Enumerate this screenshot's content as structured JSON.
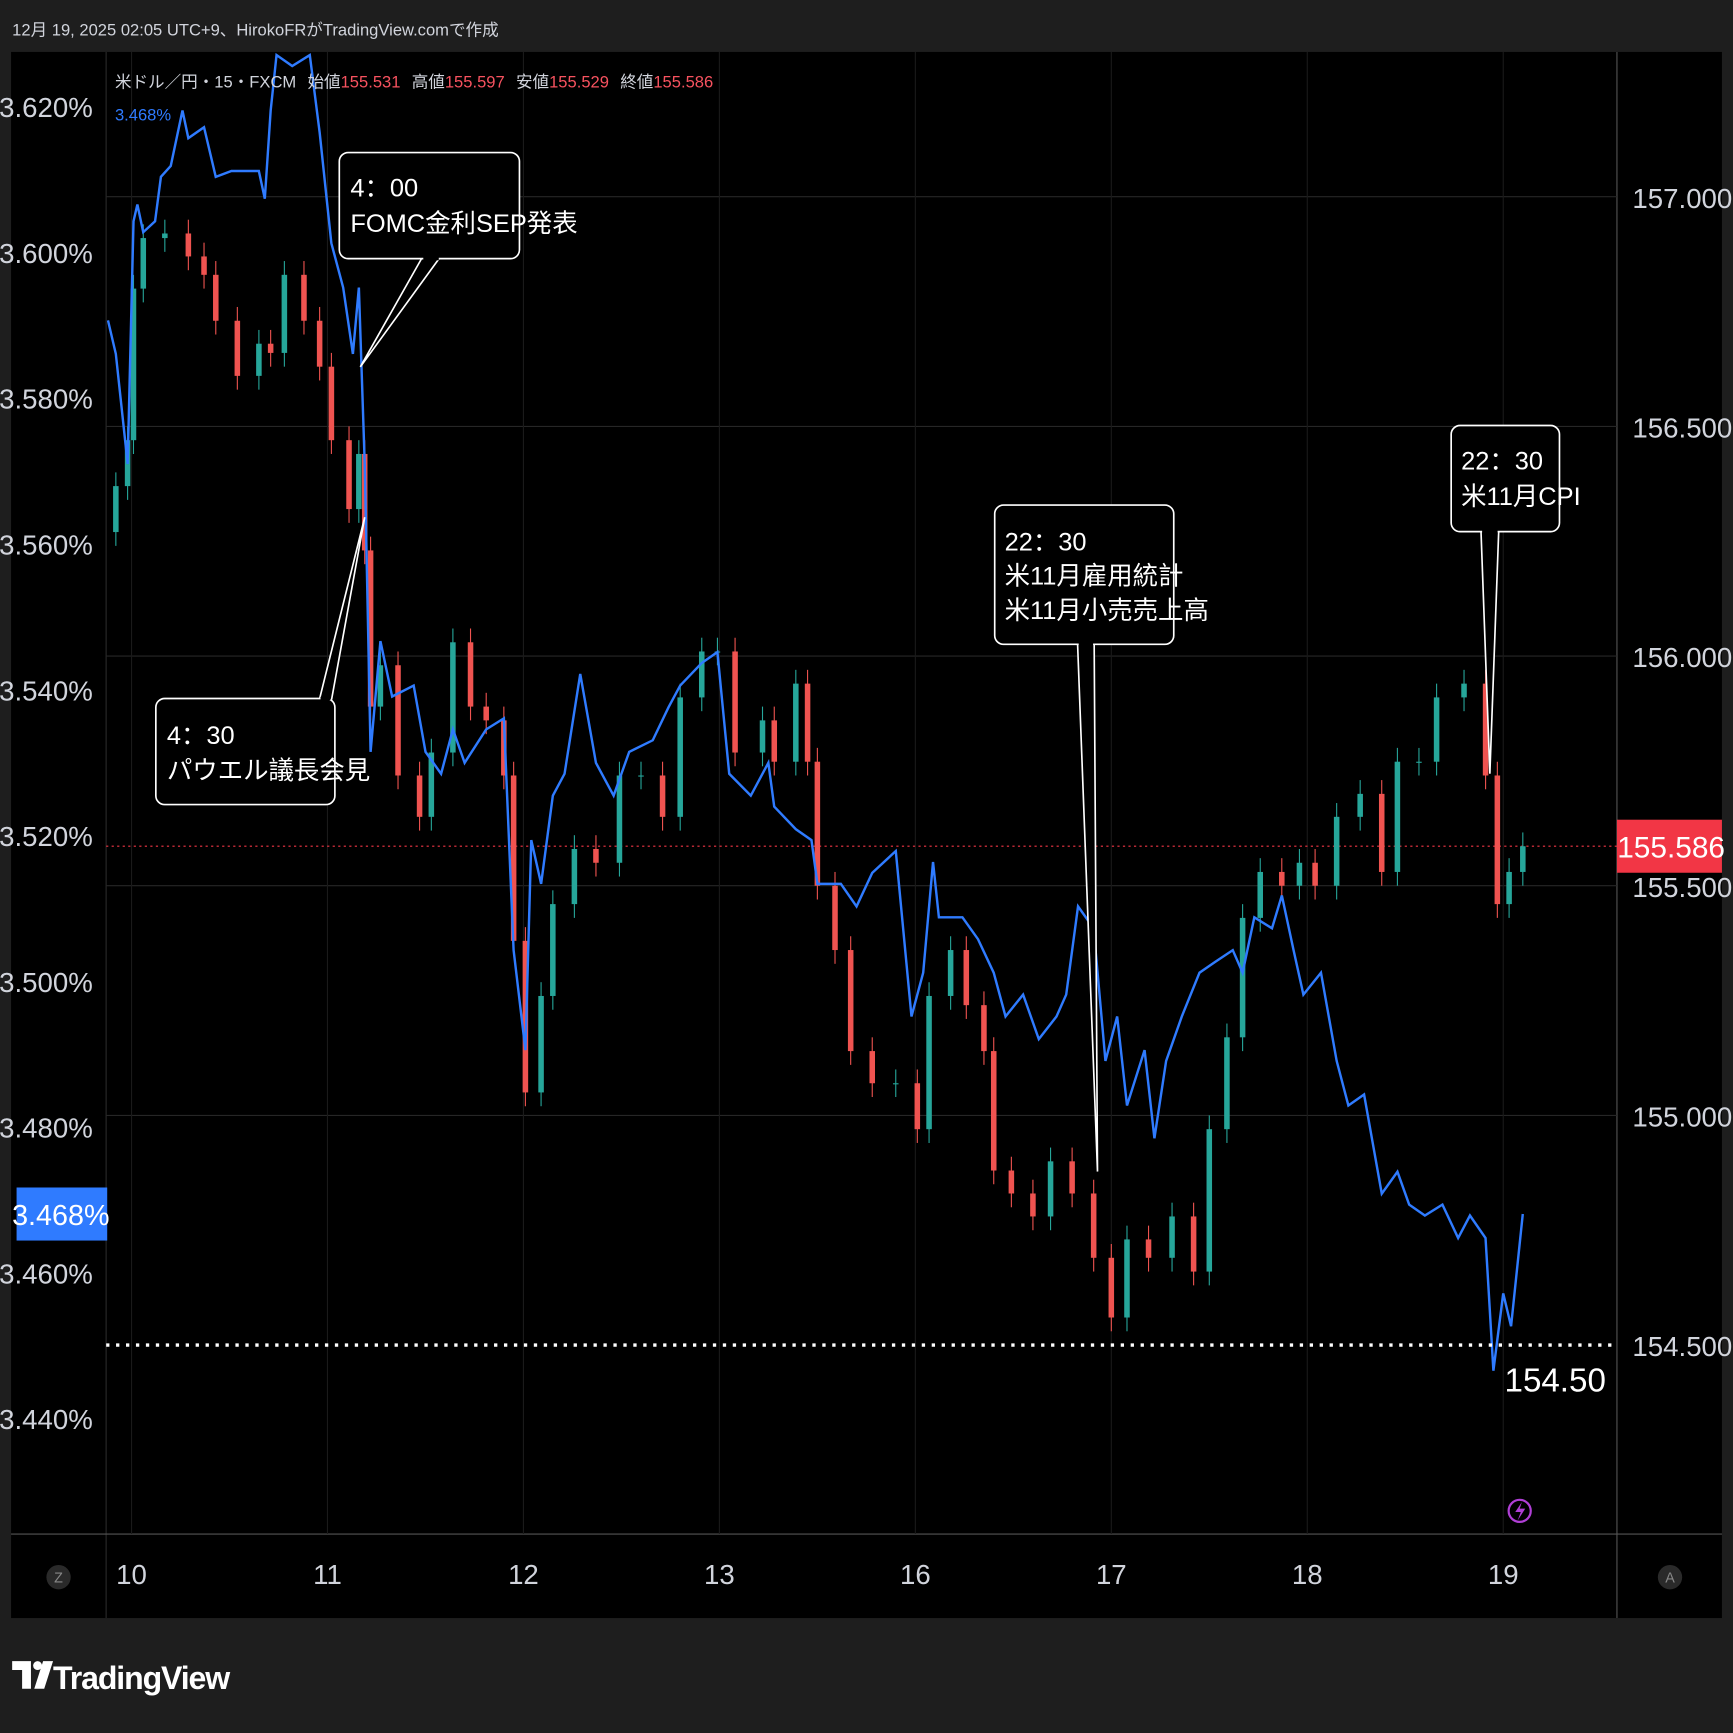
{
  "header": {
    "caption": "12月 19, 2025 02:05 UTC+9、HirokoFRがTradingView.comで作成"
  },
  "legend": {
    "symbol": "米ドル／円・15・FXCM",
    "open_label": "始値",
    "open": "155.531",
    "high_label": "高値",
    "high": "155.597",
    "low_label": "安値",
    "low": "155.529",
    "close_label": "終値",
    "close": "155.586",
    "yield_value": "3.468%"
  },
  "colors": {
    "background": "#000000",
    "frame": "#1e1e1e",
    "up": "#26a69a",
    "down": "#ef5350",
    "yield_line": "#2f7bff",
    "last_price": "#f23645",
    "yield_badge": "#2f7bff",
    "alert_icon": "#b03fd6"
  },
  "annotations": [
    {
      "lines": [
        "4：00",
        "FOMC金利SEP発表"
      ]
    },
    {
      "lines": [
        "4：30",
        "パウエル議長会見"
      ]
    },
    {
      "lines": [
        "22：30",
        "米11月雇用統計",
        "米11月小売売上高"
      ]
    },
    {
      "lines": [
        "22：30",
        "米11月CPI"
      ]
    }
  ],
  "level_line": {
    "value": 154.5,
    "label": "154.50"
  },
  "badges": {
    "last_price": "155.586",
    "yield": "3.468%"
  },
  "axis_buttons": {
    "left": "Z",
    "right": "A"
  },
  "icons": {
    "alert": "lightning-icon"
  },
  "logo": {
    "text": "TradingView"
  },
  "chart_data": [
    {
      "type": "candlestick",
      "name": "米ドル／円・15・FXCM",
      "axis": "right",
      "ylim": [
        154.18,
        157.31
      ],
      "yticks": [
        "157.000",
        "156.500",
        "156.000",
        "155.500",
        "155.000",
        "154.500"
      ],
      "x_ticks": [
        "10",
        "11",
        "12",
        "13",
        "16",
        "17",
        "18",
        "19"
      ],
      "grid": true,
      "close_series": [
        [
          9.88,
          156.27
        ],
        [
          9.92,
          156.37
        ],
        [
          9.98,
          156.47
        ],
        [
          10.01,
          156.8
        ],
        [
          10.06,
          156.91
        ],
        [
          10.17,
          156.92
        ],
        [
          10.29,
          156.87
        ],
        [
          10.37,
          156.83
        ],
        [
          10.43,
          156.73
        ],
        [
          10.54,
          156.61
        ],
        [
          10.65,
          156.68
        ],
        [
          10.71,
          156.66
        ],
        [
          10.78,
          156.83
        ],
        [
          10.88,
          156.73
        ],
        [
          10.96,
          156.63
        ],
        [
          11.02,
          156.47
        ],
        [
          11.11,
          156.32
        ],
        [
          11.16,
          156.44
        ],
        [
          11.19,
          156.23
        ],
        [
          11.22,
          155.89
        ],
        [
          11.27,
          155.98
        ],
        [
          11.36,
          155.74
        ],
        [
          11.47,
          155.65
        ],
        [
          11.53,
          155.79
        ],
        [
          11.64,
          156.03
        ],
        [
          11.73,
          155.89
        ],
        [
          11.81,
          155.86
        ],
        [
          11.9,
          155.74
        ],
        [
          11.95,
          155.38
        ],
        [
          12.01,
          155.05
        ],
        [
          12.09,
          155.26
        ],
        [
          12.15,
          155.46
        ],
        [
          12.26,
          155.58
        ],
        [
          12.37,
          155.55
        ],
        [
          12.49,
          155.74
        ],
        [
          12.6,
          155.74
        ],
        [
          12.71,
          155.65
        ],
        [
          12.8,
          155.91
        ],
        [
          12.91,
          156.01
        ],
        [
          12.99,
          156.01
        ],
        [
          13.08,
          155.79
        ],
        [
          13.22,
          155.86
        ],
        [
          13.28,
          155.77
        ],
        [
          13.39,
          155.94
        ],
        [
          13.45,
          155.77
        ],
        [
          13.5,
          155.5
        ],
        [
          13.59,
          155.36
        ],
        [
          13.67,
          155.14
        ],
        [
          13.78,
          155.07
        ],
        [
          13.9,
          155.07
        ],
        [
          16.01,
          154.97
        ],
        [
          16.07,
          155.26
        ],
        [
          16.18,
          155.36
        ],
        [
          16.26,
          155.24
        ],
        [
          16.35,
          155.14
        ],
        [
          16.4,
          154.88
        ],
        [
          16.49,
          154.83
        ],
        [
          16.6,
          154.78
        ],
        [
          16.69,
          154.9
        ],
        [
          16.8,
          154.83
        ],
        [
          16.91,
          154.69
        ],
        [
          17.0,
          154.56
        ],
        [
          17.08,
          154.73
        ],
        [
          17.19,
          154.69
        ],
        [
          17.31,
          154.78
        ],
        [
          17.42,
          154.66
        ],
        [
          17.5,
          154.97
        ],
        [
          17.59,
          155.17
        ],
        [
          17.67,
          155.43
        ],
        [
          17.76,
          155.53
        ],
        [
          17.87,
          155.5
        ],
        [
          17.96,
          155.55
        ],
        [
          18.04,
          155.5
        ],
        [
          18.15,
          155.65
        ],
        [
          18.27,
          155.7
        ],
        [
          18.38,
          155.53
        ],
        [
          18.46,
          155.77
        ],
        [
          18.57,
          155.77
        ],
        [
          18.66,
          155.91
        ],
        [
          18.8,
          155.94
        ],
        [
          18.91,
          155.74
        ],
        [
          18.97,
          155.46
        ],
        [
          19.03,
          155.53
        ],
        [
          19.1,
          155.586
        ]
      ],
      "last": 155.586
    },
    {
      "type": "line",
      "name": "",
      "axis": "left",
      "ylim": [
        3.4225,
        3.6275
      ],
      "yticks": [
        "3.620%",
        "3.600%",
        "3.580%",
        "3.560%",
        "3.540%",
        "3.520%",
        "3.500%",
        "3.480%",
        "3.460%",
        "3.440%"
      ],
      "series": [
        [
          9.88,
          3.5906
        ],
        [
          9.92,
          3.586
        ],
        [
          9.98,
          3.5709
        ],
        [
          10.01,
          3.6042
        ],
        [
          10.03,
          3.6065
        ],
        [
          10.06,
          3.6027
        ],
        [
          10.12,
          3.6042
        ],
        [
          10.15,
          3.6103
        ],
        [
          10.2,
          3.6118
        ],
        [
          10.26,
          3.6194
        ],
        [
          10.29,
          3.6156
        ],
        [
          10.37,
          3.6171
        ],
        [
          10.43,
          3.6103
        ],
        [
          10.51,
          3.6111
        ],
        [
          10.65,
          3.6111
        ],
        [
          10.68,
          3.6073
        ],
        [
          10.71,
          3.6194
        ],
        [
          10.74,
          3.627
        ],
        [
          10.82,
          3.6255
        ],
        [
          10.91,
          3.627
        ],
        [
          10.96,
          3.6164
        ],
        [
          11.02,
          3.6012
        ],
        [
          11.08,
          3.5951
        ],
        [
          11.13,
          3.586
        ],
        [
          11.16,
          3.5951
        ],
        [
          11.19,
          3.5709
        ],
        [
          11.22,
          3.5314
        ],
        [
          11.27,
          3.5466
        ],
        [
          11.33,
          3.539
        ],
        [
          11.44,
          3.5405
        ],
        [
          11.5,
          3.5314
        ],
        [
          11.58,
          3.5284
        ],
        [
          11.64,
          3.5345
        ],
        [
          11.7,
          3.5299
        ],
        [
          11.81,
          3.5345
        ],
        [
          11.9,
          3.536
        ],
        [
          11.95,
          3.5042
        ],
        [
          12.01,
          3.4905
        ],
        [
          12.04,
          3.5193
        ],
        [
          12.09,
          3.5133
        ],
        [
          12.15,
          3.5254
        ],
        [
          12.21,
          3.5284
        ],
        [
          12.29,
          3.5421
        ],
        [
          12.37,
          3.5299
        ],
        [
          12.46,
          3.5254
        ],
        [
          12.54,
          3.5314
        ],
        [
          12.66,
          3.533
        ],
        [
          12.74,
          3.5375
        ],
        [
          12.8,
          3.5405
        ],
        [
          12.91,
          3.5436
        ],
        [
          12.99,
          3.5451
        ],
        [
          13.05,
          3.5284
        ],
        [
          13.16,
          3.5254
        ],
        [
          13.25,
          3.5299
        ],
        [
          13.28,
          3.5239
        ],
        [
          13.39,
          3.5208
        ],
        [
          13.47,
          3.5193
        ],
        [
          13.5,
          3.5133
        ],
        [
          13.62,
          3.5133
        ],
        [
          13.7,
          3.5102
        ],
        [
          13.78,
          3.5148
        ],
        [
          13.9,
          3.5178
        ],
        [
          13.98,
          3.4951
        ],
        [
          16.04,
          3.5011
        ],
        [
          16.09,
          3.5163
        ],
        [
          16.12,
          3.5087
        ],
        [
          16.24,
          3.5087
        ],
        [
          16.32,
          3.5057
        ],
        [
          16.4,
          3.5011
        ],
        [
          16.46,
          3.4951
        ],
        [
          16.55,
          3.4981
        ],
        [
          16.63,
          3.492
        ],
        [
          16.72,
          3.4951
        ],
        [
          16.77,
          3.4981
        ],
        [
          16.83,
          3.5102
        ],
        [
          16.91,
          3.5072
        ],
        [
          16.97,
          3.489
        ],
        [
          17.03,
          3.4951
        ],
        [
          17.08,
          3.4829
        ],
        [
          17.17,
          3.4905
        ],
        [
          17.22,
          3.4784
        ],
        [
          17.28,
          3.489
        ],
        [
          17.36,
          3.4951
        ],
        [
          17.45,
          3.5011
        ],
        [
          17.53,
          3.5026
        ],
        [
          17.62,
          3.5042
        ],
        [
          17.67,
          3.5011
        ],
        [
          17.73,
          3.5087
        ],
        [
          17.82,
          3.5072
        ],
        [
          17.87,
          3.5117
        ],
        [
          17.93,
          3.5042
        ],
        [
          17.98,
          3.4981
        ],
        [
          18.07,
          3.5011
        ],
        [
          18.15,
          3.489
        ],
        [
          18.21,
          3.4829
        ],
        [
          18.29,
          3.4844
        ],
        [
          18.38,
          3.4708
        ],
        [
          18.46,
          3.4738
        ],
        [
          18.52,
          3.4693
        ],
        [
          18.6,
          3.4678
        ],
        [
          18.69,
          3.4693
        ],
        [
          18.77,
          3.4647
        ],
        [
          18.83,
          3.4678
        ],
        [
          18.91,
          3.4647
        ],
        [
          18.95,
          3.4465
        ],
        [
          19.0,
          3.4571
        ],
        [
          19.04,
          3.4526
        ],
        [
          19.1,
          3.468
        ]
      ],
      "last": 3.468
    }
  ]
}
